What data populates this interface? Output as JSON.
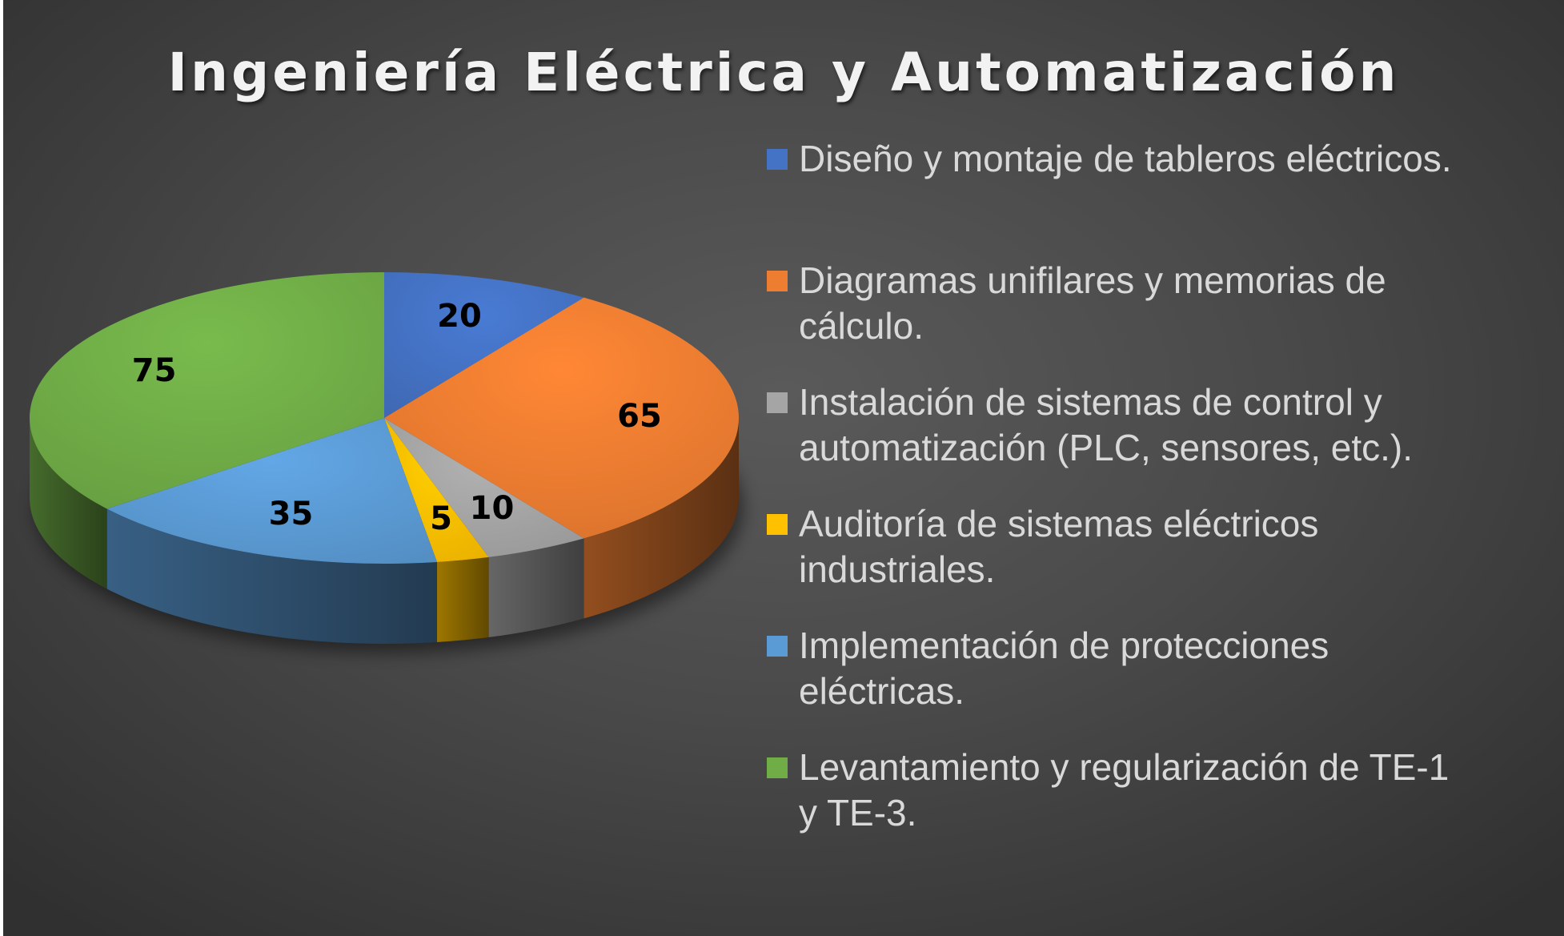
{
  "chart_data": {
    "type": "pie",
    "title": "Ingeniería Eléctrica y Automatización",
    "legend_position": "right",
    "style": "3d",
    "categories": [
      "Diseño y montaje de tableros eléctricos.",
      "Diagramas unifilares y memorias de cálculo.",
      "Instalación de sistemas de control y automatización (PLC, sensores, etc.).",
      "Auditoría de sistemas eléctricos industriales.",
      "Implementación de protecciones eléctricas.",
      "Levantamiento y regularización de TE-1 y TE-3."
    ],
    "values": [
      20,
      65,
      10,
      5,
      35,
      75
    ],
    "colors": [
      "#4472C4",
      "#ED7D31",
      "#A5A5A5",
      "#FFC000",
      "#5B9BD5",
      "#70AD47"
    ]
  }
}
